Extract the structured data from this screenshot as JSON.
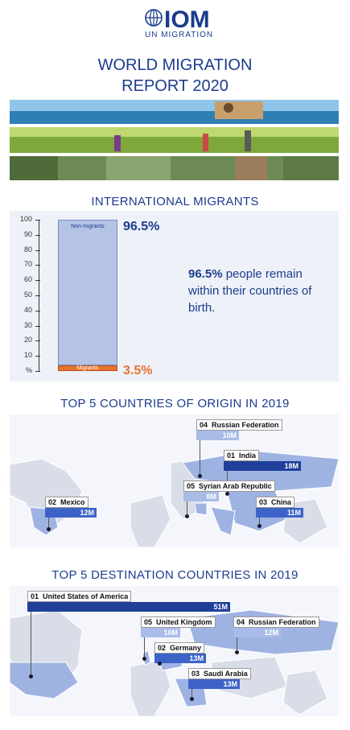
{
  "header": {
    "logo_text": "IOM",
    "logo_subtext": "UN MIGRATION",
    "report_title_line1": "WORLD MIGRATION",
    "report_title_line2": "REPORT 2020"
  },
  "colors": {
    "brand_blue": "#1b3c8d",
    "non_migrant_bar": "#b4c3e6",
    "migrant_bar": "#e8722c",
    "pct_orange": "#e8722c",
    "value_dark": "#1f3f99",
    "value_mid": "#3d63c9",
    "value_light": "#a9bce8",
    "map_land": "#d8dde8",
    "map_highlight": "#9fb3e3"
  },
  "chart_data": [
    {
      "type": "bar",
      "title": "INTERNATIONAL MIGRANTS",
      "ylabel": "%",
      "ylim": [
        0,
        100
      ],
      "yticks": [
        "100",
        "90",
        "80",
        "70",
        "60",
        "50",
        "40",
        "30",
        "20",
        "10",
        "%"
      ],
      "stacked": true,
      "series": [
        {
          "name": "Non migrants",
          "value": 96.5,
          "label": "96.5%"
        },
        {
          "name": "Migrants",
          "value": 3.5,
          "label": "3.5%"
        }
      ],
      "annotation": {
        "highlight": "96.5%",
        "text": "people remain within their countries of birth."
      }
    },
    {
      "type": "bar",
      "title": "TOP 5 COUNTRIES OF ORIGIN IN 2019",
      "unit": "M",
      "items": [
        {
          "rank": "01",
          "country": "India",
          "value": 18,
          "label": "18M"
        },
        {
          "rank": "02",
          "country": "Mexico",
          "value": 12,
          "label": "12M"
        },
        {
          "rank": "03",
          "country": "China",
          "value": 11,
          "label": "11M"
        },
        {
          "rank": "04",
          "country": "Russian Federation",
          "value": 10,
          "label": "10M"
        },
        {
          "rank": "05",
          "country": "Syrian Arab Republic",
          "value": 8,
          "label": "8M"
        }
      ]
    },
    {
      "type": "bar",
      "title": "TOP 5 DESTINATION COUNTRIES IN 2019",
      "unit": "M",
      "items": [
        {
          "rank": "01",
          "country": "United States of America",
          "value": 51,
          "label": "51M"
        },
        {
          "rank": "02",
          "country": "Germany",
          "value": 13,
          "label": "13M"
        },
        {
          "rank": "03",
          "country": "Saudi Arabia",
          "value": 13,
          "label": "13M"
        },
        {
          "rank": "04",
          "country": "Russian Federation",
          "value": 12,
          "label": "12M"
        },
        {
          "rank": "05",
          "country": "United Kingdom",
          "value": 10,
          "label": "10M"
        }
      ]
    }
  ]
}
